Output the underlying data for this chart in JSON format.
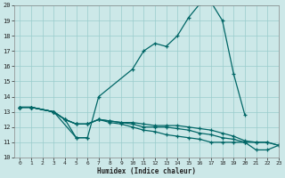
{
  "xlabel": "Humidex (Indice chaleur)",
  "xlim": [
    -0.5,
    23
  ],
  "ylim": [
    10,
    20
  ],
  "yticks": [
    10,
    11,
    12,
    13,
    14,
    15,
    16,
    17,
    18,
    19,
    20
  ],
  "xticks": [
    0,
    1,
    2,
    3,
    4,
    5,
    6,
    7,
    8,
    9,
    10,
    11,
    12,
    13,
    14,
    15,
    16,
    17,
    18,
    19,
    20,
    21,
    22,
    23
  ],
  "bg_color": "#cce8e8",
  "grid_color": "#99cccc",
  "line_color": "#006666",
  "lines": [
    {
      "x": [
        0,
        1,
        3,
        5,
        6,
        7,
        10,
        11,
        12,
        13,
        14,
        15,
        16,
        17,
        18,
        19,
        20
      ],
      "y": [
        13.3,
        13.3,
        13.0,
        11.3,
        11.3,
        14.0,
        15.8,
        17.0,
        17.5,
        17.3,
        18.0,
        19.2,
        20.1,
        20.2,
        19.0,
        15.5,
        12.8
      ]
    },
    {
      "x": [
        0,
        1,
        3,
        4,
        5,
        6
      ],
      "y": [
        13.3,
        13.3,
        13.0,
        12.5,
        11.3,
        11.3
      ]
    },
    {
      "x": [
        0,
        1,
        3,
        4,
        5,
        6,
        7,
        8,
        9,
        10,
        11,
        12,
        13,
        14,
        15,
        16,
        17,
        18,
        19,
        20,
        21,
        22,
        23
      ],
      "y": [
        13.3,
        13.3,
        13.0,
        12.5,
        12.2,
        12.2,
        12.5,
        12.4,
        12.3,
        12.3,
        12.2,
        12.1,
        12.1,
        12.1,
        12.0,
        11.9,
        11.8,
        11.6,
        11.4,
        11.1,
        11.0,
        11.0,
        10.8
      ]
    },
    {
      "x": [
        0,
        1,
        3,
        4,
        5,
        6,
        7,
        8,
        9,
        10,
        11,
        12,
        13,
        14,
        15,
        16,
        17,
        18,
        19,
        20,
        21,
        22,
        23
      ],
      "y": [
        13.3,
        13.3,
        13.0,
        12.5,
        12.2,
        12.2,
        12.5,
        12.4,
        12.3,
        12.2,
        12.0,
        12.0,
        12.0,
        11.9,
        11.8,
        11.6,
        11.5,
        11.3,
        11.2,
        11.0,
        11.0,
        11.0,
        10.8
      ]
    },
    {
      "x": [
        0,
        1,
        3,
        4,
        5,
        6,
        7,
        8,
        9,
        10,
        11,
        12,
        13,
        14,
        15,
        16,
        17,
        18,
        19,
        20,
        21,
        22,
        23
      ],
      "y": [
        13.3,
        13.3,
        13.0,
        12.5,
        12.2,
        12.2,
        12.5,
        12.3,
        12.2,
        12.0,
        11.8,
        11.7,
        11.5,
        11.4,
        11.3,
        11.2,
        11.0,
        11.0,
        11.0,
        11.0,
        10.5,
        10.5,
        10.8
      ]
    }
  ]
}
